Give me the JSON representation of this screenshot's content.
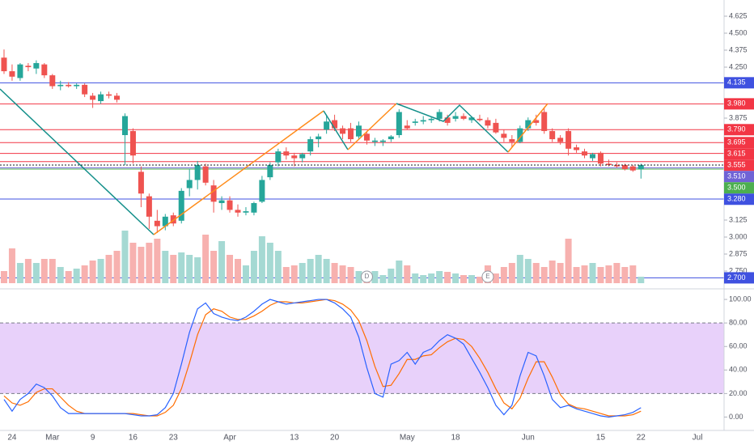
{
  "chart_data": {
    "type": "candlestick",
    "categories": [
      null,
      "24",
      null,
      null,
      null,
      null,
      "Mar",
      null,
      null,
      null,
      null,
      "9",
      null,
      null,
      null,
      null,
      "16",
      null,
      null,
      null,
      null,
      "23",
      null,
      null,
      null,
      null,
      null,
      null,
      "Apr",
      null,
      null,
      null,
      null,
      null,
      null,
      null,
      "13",
      null,
      null,
      null,
      null,
      "20",
      null,
      null,
      null,
      null,
      null,
      null,
      null,
      null,
      "May",
      null,
      null,
      null,
      null,
      null,
      "18",
      null,
      null,
      null,
      null,
      null,
      null,
      null,
      null,
      "Jun",
      null,
      null,
      null,
      null,
      null,
      null,
      null,
      null,
      "15",
      null,
      null,
      null,
      null,
      "22",
      null,
      null,
      null,
      null,
      null,
      null,
      "Jul",
      null
    ],
    "open": [
      4.32,
      4.22,
      4.17,
      4.26,
      4.24,
      4.27,
      4.19,
      4.11,
      4.12,
      4.11,
      4.12,
      4.04,
      4.0,
      4.05,
      4.04,
      3.75,
      3.78,
      3.48,
      3.3,
      3.12,
      3.08,
      3.16,
      3.12,
      3.36,
      3.42,
      3.52,
      3.38,
      3.25,
      3.27,
      3.2,
      3.18,
      3.18,
      3.26,
      3.44,
      3.55,
      3.63,
      3.6,
      3.58,
      3.63,
      3.72,
      3.79,
      3.86,
      3.8,
      3.8,
      3.74,
      3.76,
      3.7,
      3.7,
      3.72,
      3.75,
      3.82,
      3.84,
      3.85,
      3.86,
      3.87,
      3.88,
      3.87,
      3.89,
      3.86,
      3.87,
      3.86,
      3.84,
      3.76,
      3.72,
      3.7,
      3.8,
      3.86,
      3.92,
      3.78,
      3.73,
      3.78,
      3.66,
      3.63,
      3.58,
      3.62,
      3.54,
      3.53,
      3.53,
      3.52,
      3.5,
      null,
      null,
      null,
      null,
      null,
      null,
      null,
      null
    ],
    "high": [
      4.38,
      4.27,
      4.28,
      4.28,
      4.3,
      4.28,
      4.2,
      4.15,
      4.14,
      4.13,
      4.13,
      4.06,
      4.07,
      4.07,
      4.06,
      3.91,
      3.8,
      3.52,
      3.32,
      3.2,
      3.17,
      3.18,
      3.36,
      3.5,
      3.56,
      3.54,
      3.42,
      3.3,
      3.3,
      3.24,
      3.22,
      3.26,
      3.45,
      3.55,
      3.65,
      3.66,
      3.62,
      3.62,
      3.74,
      3.76,
      3.9,
      3.9,
      3.82,
      3.84,
      3.85,
      3.78,
      3.73,
      3.72,
      3.75,
      3.94,
      3.86,
      3.87,
      3.89,
      3.88,
      3.94,
      3.9,
      3.92,
      3.91,
      3.89,
      3.9,
      3.88,
      3.87,
      3.79,
      3.75,
      3.82,
      3.88,
      3.9,
      3.95,
      3.8,
      3.75,
      3.8,
      3.68,
      3.65,
      3.62,
      3.63,
      3.57,
      3.55,
      3.54,
      3.53,
      3.54,
      null,
      null,
      null,
      null,
      null,
      null,
      null,
      null
    ],
    "low": [
      4.2,
      4.15,
      4.15,
      4.22,
      4.2,
      4.17,
      4.09,
      4.08,
      4.1,
      4.09,
      4.03,
      3.95,
      3.98,
      4.02,
      3.99,
      3.53,
      3.54,
      3.22,
      3.06,
      3.03,
      3.05,
      3.08,
      3.1,
      3.3,
      3.35,
      3.38,
      3.18,
      3.2,
      3.18,
      3.15,
      3.16,
      3.16,
      3.25,
      3.42,
      3.52,
      3.57,
      3.52,
      3.55,
      3.6,
      3.66,
      3.76,
      3.78,
      3.72,
      3.7,
      3.72,
      3.68,
      3.67,
      3.67,
      3.7,
      3.73,
      3.79,
      3.82,
      3.83,
      3.84,
      3.85,
      3.82,
      3.85,
      3.86,
      3.84,
      3.85,
      3.8,
      3.76,
      3.7,
      3.66,
      3.69,
      3.78,
      3.82,
      3.76,
      3.7,
      3.68,
      3.6,
      3.62,
      3.58,
      3.56,
      3.52,
      3.52,
      3.51,
      3.49,
      3.48,
      3.43,
      null,
      null,
      null,
      null,
      null,
      null,
      null,
      null
    ],
    "close": [
      4.22,
      4.18,
      4.27,
      4.25,
      4.28,
      4.19,
      4.11,
      4.12,
      4.11,
      4.12,
      4.05,
      4.01,
      4.05,
      4.04,
      4.01,
      3.89,
      3.6,
      3.32,
      3.15,
      3.08,
      3.15,
      3.1,
      3.34,
      3.42,
      3.53,
      3.4,
      3.26,
      3.27,
      3.2,
      3.18,
      3.19,
      3.25,
      3.42,
      3.53,
      3.63,
      3.6,
      3.58,
      3.61,
      3.72,
      3.74,
      3.85,
      3.8,
      3.76,
      3.72,
      3.82,
      3.71,
      3.71,
      3.71,
      3.74,
      3.92,
      3.8,
      3.85,
      3.86,
      3.87,
      3.92,
      3.84,
      3.89,
      3.87,
      3.88,
      3.86,
      3.82,
      3.77,
      3.73,
      3.7,
      3.8,
      3.86,
      3.84,
      3.78,
      3.72,
      3.7,
      3.65,
      3.64,
      3.6,
      3.61,
      3.54,
      3.53,
      3.52,
      3.5,
      3.49,
      3.53,
      null,
      null,
      null,
      null,
      null,
      null,
      null,
      null
    ],
    "volume": [
      15,
      43,
      25,
      30,
      25,
      30,
      30,
      20,
      15,
      18,
      22,
      28,
      30,
      35,
      40,
      65,
      50,
      45,
      50,
      55,
      40,
      35,
      38,
      35,
      32,
      60,
      40,
      52,
      35,
      30,
      22,
      40,
      58,
      50,
      40,
      20,
      22,
      25,
      30,
      35,
      30,
      25,
      22,
      20,
      15,
      12,
      15,
      10,
      18,
      28,
      22,
      12,
      10,
      12,
      15,
      14,
      12,
      10,
      10,
      8,
      22,
      12,
      20,
      25,
      35,
      30,
      25,
      20,
      28,
      25,
      55,
      20,
      22,
      25,
      20,
      22,
      25,
      20,
      22,
      8,
      null,
      null,
      null,
      null,
      null,
      null,
      null,
      null
    ],
    "events": [
      null,
      null,
      null,
      null,
      null,
      null,
      null,
      null,
      null,
      null,
      null,
      null,
      null,
      null,
      null,
      null,
      null,
      null,
      null,
      null,
      null,
      null,
      null,
      null,
      null,
      null,
      null,
      null,
      null,
      null,
      null,
      null,
      null,
      null,
      null,
      null,
      null,
      null,
      null,
      null,
      null,
      null,
      null,
      null,
      null,
      "D",
      null,
      null,
      null,
      null,
      null,
      null,
      null,
      null,
      null,
      null,
      null,
      null,
      null,
      null,
      "E",
      null,
      null,
      null,
      null,
      null,
      null,
      null,
      null,
      null,
      null,
      null,
      null,
      null,
      null,
      null,
      null,
      null,
      null,
      null,
      null,
      null,
      null,
      null,
      null,
      null,
      null,
      null
    ],
    "up_color": "#26a69a",
    "down_color": "#ef5350",
    "volume_up_color": "#a5d9d3",
    "volume_down_color": "#f7b1af",
    "ylim": [
      2.631,
      4.744
    ],
    "yticks": [
      4.625,
      {
        "value": 4.5,
        "label": "4.500"
      },
      4.375,
      {
        "value": 4.25,
        "label": "4.250"
      },
      3.875,
      3.125,
      {
        "value": 3.0,
        "label": "3.000"
      },
      2.875,
      {
        "value": 2.75,
        "label": "2.750"
      }
    ],
    "levels": [
      {
        "value": 4.135,
        "label": "4.135",
        "color": "#3f51e0"
      },
      {
        "value": 3.98,
        "label": "3.980",
        "color": "#f23645"
      },
      {
        "value": 3.79,
        "label": "3.790",
        "color": "#f23645"
      },
      {
        "value": 3.695,
        "label": "3.695",
        "color": "#f23645"
      },
      {
        "value": 3.615,
        "label": "3.615",
        "color": "#f23645"
      },
      {
        "value": 3.555,
        "label": "3.555",
        "color": "#f23645"
      },
      {
        "value": 3.51,
        "label": "3.510",
        "color": "#6f63d6"
      },
      {
        "value": 3.5,
        "label": "3.500",
        "color": "#4caf50"
      },
      {
        "value": 3.28,
        "label": "3.280",
        "color": "#3f51e0"
      },
      {
        "value": 2.7,
        "label": "2.700",
        "color": "#3f51e0"
      }
    ],
    "oscillator": {
      "type": "line",
      "k": [
        15,
        5,
        15,
        20,
        28,
        25,
        18,
        8,
        3,
        3,
        3,
        3,
        3,
        3,
        3,
        3,
        2,
        1,
        1,
        2,
        8,
        20,
        45,
        72,
        92,
        97,
        88,
        85,
        83,
        82,
        85,
        90,
        96,
        100,
        98,
        96,
        97,
        98,
        99,
        100,
        100,
        97,
        92,
        85,
        68,
        42,
        20,
        17,
        45,
        48,
        55,
        45,
        55,
        58,
        65,
        70,
        67,
        62,
        50,
        38,
        25,
        10,
        2,
        10,
        35,
        55,
        52,
        35,
        15,
        8,
        10,
        7,
        5,
        3,
        1,
        0,
        1,
        2,
        4,
        8,
        null,
        null,
        null,
        null,
        null,
        null,
        null,
        null
      ],
      "d": [
        18,
        12,
        10,
        13,
        21,
        24,
        24,
        17,
        10,
        5,
        3,
        3,
        3,
        3,
        3,
        3,
        3,
        2,
        1,
        1,
        4,
        10,
        24,
        46,
        70,
        87,
        92,
        90,
        85,
        83,
        83,
        86,
        90,
        95,
        98,
        98,
        97,
        97,
        98,
        99,
        100,
        99,
        96,
        91,
        82,
        65,
        43,
        26,
        27,
        37,
        49,
        49,
        52,
        53,
        59,
        64,
        67,
        66,
        60,
        50,
        38,
        24,
        12,
        7,
        16,
        33,
        47,
        47,
        34,
        19,
        11,
        8,
        7,
        5,
        3,
        1,
        1,
        1,
        2,
        5,
        null,
        null,
        null,
        null,
        null,
        null,
        null,
        null
      ],
      "k_color": "#2962ff",
      "d_color": "#ff6d00",
      "band": [
        20,
        80
      ],
      "band_color": "#d9b3f7",
      "ylim": [
        -10,
        109
      ],
      "yticks": [
        {
          "value": 100,
          "label": "100.00"
        },
        {
          "value": 80,
          "label": "80.00"
        },
        {
          "value": 60,
          "label": "60.00"
        },
        {
          "value": 40,
          "label": "40.00"
        },
        {
          "value": 20,
          "label": "20.00"
        },
        {
          "value": 0,
          "label": "0.00"
        }
      ]
    }
  }
}
